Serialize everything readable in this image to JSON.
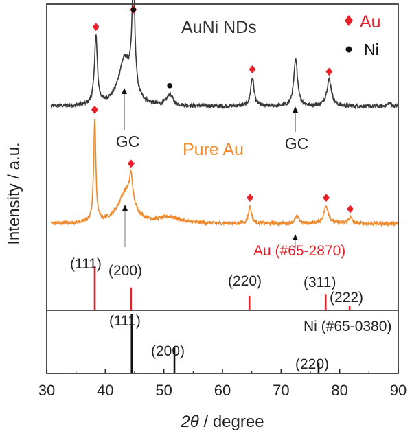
{
  "chart_data": {
    "type": "line",
    "xlabel_symbol": "2θ",
    "xlabel_suffix": " / degree",
    "ylabel": "Intensity / a.u.",
    "xlim": [
      30,
      90
    ],
    "xticks": [
      30,
      40,
      50,
      60,
      70,
      80,
      90
    ],
    "grid": false,
    "legend": {
      "position": "top-right",
      "entries": [
        {
          "marker": "diamond",
          "label": "Au",
          "color": "#e8202a"
        },
        {
          "marker": "dot",
          "label": "Ni",
          "color": "#111111"
        }
      ]
    },
    "series": [
      {
        "name": "AuNi NDs",
        "color": "#3a3a3a",
        "baseline": 0.08,
        "peaks": [
          {
            "x": 38.4,
            "h": 0.62,
            "w": 0.3
          },
          {
            "x": 43.3,
            "h": 0.42,
            "w": 1.3
          },
          {
            "x": 44.8,
            "h": 1.0,
            "w": 0.3
          },
          {
            "x": 51.0,
            "h": 0.1,
            "w": 0.6
          },
          {
            "x": 65.1,
            "h": 0.26,
            "w": 0.35
          },
          {
            "x": 72.5,
            "h": 0.42,
            "w": 0.4
          },
          {
            "x": 78.2,
            "h": 0.24,
            "w": 0.5
          },
          {
            "x": 88.5,
            "h": 0.03,
            "w": 0.4
          }
        ],
        "markers": [
          {
            "x": 38.4,
            "type": "diamond"
          },
          {
            "x": 44.8,
            "type": "diamond"
          },
          {
            "x": 44.8,
            "type": "dot"
          },
          {
            "x": 51.0,
            "type": "dot"
          },
          {
            "x": 65.1,
            "type": "diamond"
          },
          {
            "x": 78.2,
            "type": "diamond"
          }
        ]
      },
      {
        "name": "Pure Au",
        "color": "#f08a2c",
        "baseline": 0.06,
        "peaks": [
          {
            "x": 38.2,
            "h": 1.0,
            "w": 0.22
          },
          {
            "x": 43.5,
            "h": 0.3,
            "w": 1.6
          },
          {
            "x": 44.4,
            "h": 0.27,
            "w": 0.35
          },
          {
            "x": 51.0,
            "h": 0.06,
            "w": 2.0
          },
          {
            "x": 64.7,
            "h": 0.17,
            "w": 0.3
          },
          {
            "x": 72.7,
            "h": 0.07,
            "w": 0.4
          },
          {
            "x": 77.7,
            "h": 0.17,
            "w": 0.5
          },
          {
            "x": 81.8,
            "h": 0.06,
            "w": 0.4
          }
        ],
        "markers": [
          {
            "x": 38.2,
            "type": "diamond"
          },
          {
            "x": 44.4,
            "type": "diamond"
          },
          {
            "x": 64.7,
            "type": "diamond"
          },
          {
            "x": 77.7,
            "type": "diamond"
          },
          {
            "x": 81.8,
            "type": "diamond"
          }
        ]
      }
    ],
    "annotations": [
      {
        "text": "GC",
        "x": 43.5
      },
      {
        "text": "GC",
        "x": 72.5
      }
    ],
    "reference_patterns": [
      {
        "name": "Au (#65-2870)",
        "color": "#e8202a",
        "lines": [
          {
            "x": 38.2,
            "rel": 1.0,
            "hkl": "(111)"
          },
          {
            "x": 44.4,
            "rel": 0.52,
            "hkl": "(200)"
          },
          {
            "x": 64.6,
            "rel": 0.33,
            "hkl": "(220)"
          },
          {
            "x": 77.6,
            "rel": 0.37,
            "hkl": "(311)"
          },
          {
            "x": 81.7,
            "rel": 0.1,
            "hkl": "(222)"
          }
        ]
      },
      {
        "name": "Ni (#65-0380)",
        "color": "#111111",
        "lines": [
          {
            "x": 44.5,
            "rel": 1.0,
            "hkl": "(111)"
          },
          {
            "x": 51.8,
            "rel": 0.44,
            "hkl": "(200)"
          },
          {
            "x": 76.4,
            "rel": 0.18,
            "hkl": "(220)"
          }
        ]
      }
    ]
  }
}
